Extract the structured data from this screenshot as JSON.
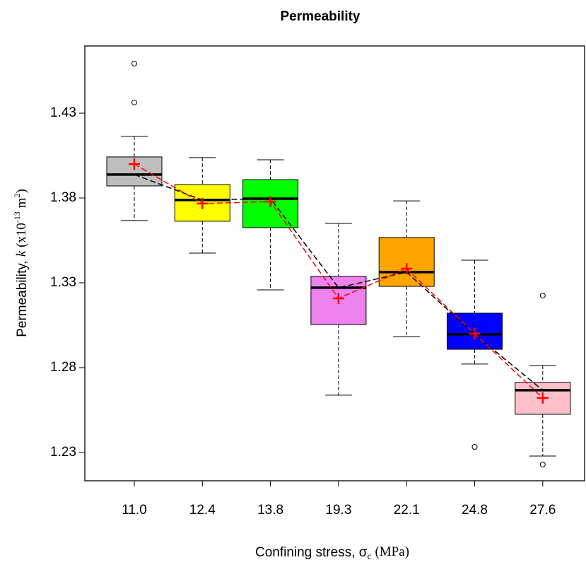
{
  "chart_data": {
    "type": "box",
    "title": "Permeability",
    "x_label": [
      "Confining stress, σ",
      "c",
      " (MPa)"
    ],
    "y_label": [
      "Permeability, ",
      "k",
      " (x10",
      "-13",
      " m",
      "2",
      ")"
    ],
    "categories": [
      "11.0",
      "12.4",
      "13.8",
      "19.3",
      "22.1",
      "24.8",
      "27.6"
    ],
    "colors": [
      "#bebebe",
      "#ffff00",
      "#00ff00",
      "#ee82ee",
      "#ffa500",
      "#0000ff",
      "#ffc0cb"
    ],
    "whisker_low": [
      1.3667,
      1.3475,
      1.3258,
      1.2638,
      1.2983,
      1.2821,
      1.2279
    ],
    "q1": [
      1.3871,
      1.3663,
      1.3625,
      1.3054,
      1.3279,
      1.2908,
      1.2525
    ],
    "median": [
      1.3938,
      1.3788,
      1.3796,
      1.3271,
      1.3363,
      1.2996,
      1.2667
    ],
    "q3": [
      1.4042,
      1.3879,
      1.3908,
      1.3338,
      1.3567,
      1.3121,
      1.2713
    ],
    "whisker_high": [
      1.4163,
      1.4038,
      1.4025,
      1.365,
      1.3783,
      1.3433,
      1.2813
    ],
    "mean": [
      1.4,
      1.3767,
      1.3779,
      1.3208,
      1.3383,
      1.3,
      1.2621
    ],
    "outliers": [
      [
        1.4592,
        1.4363
      ],
      [],
      [],
      [],
      [],
      [
        1.2333
      ],
      [
        1.3225,
        1.2229
      ]
    ],
    "median_line_color": "#000000",
    "mean_color": "#ff0000",
    "ylim": [
      1.2133,
      1.4696
    ],
    "yticks": [
      1.23,
      1.28,
      1.33,
      1.38,
      1.43
    ]
  }
}
